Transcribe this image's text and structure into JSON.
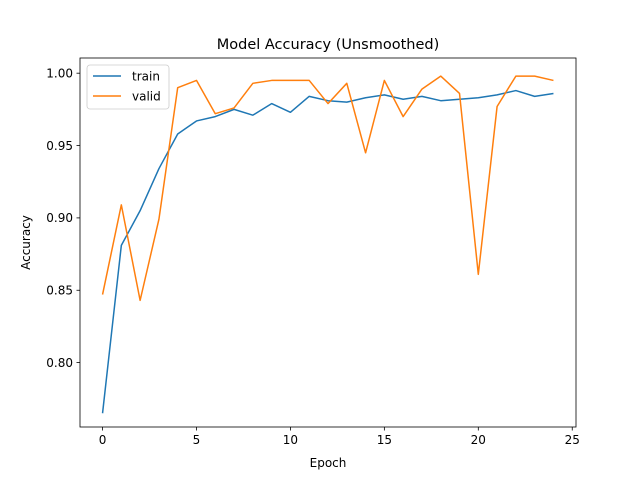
{
  "chart_data": {
    "type": "line",
    "title": "Model Accuracy (Unsmoothed)",
    "xlabel": "Epoch",
    "ylabel": "Accuracy",
    "xlim": [
      -1.2,
      25.2
    ],
    "ylim": [
      0.7555,
      1.0105
    ],
    "xticks": [
      0,
      5,
      10,
      15,
      20,
      25
    ],
    "xtick_labels": [
      "0",
      "5",
      "10",
      "15",
      "20",
      "25"
    ],
    "yticks": [
      0.8,
      0.85,
      0.9,
      0.95,
      1.0
    ],
    "ytick_labels": [
      "0.80",
      "0.85",
      "0.90",
      "0.95",
      "1.00"
    ],
    "grid": false,
    "legend_position": "top-left",
    "x": [
      0,
      1,
      2,
      3,
      4,
      5,
      6,
      7,
      8,
      9,
      10,
      11,
      12,
      13,
      14,
      15,
      16,
      17,
      18,
      19,
      20,
      21,
      22,
      23,
      24
    ],
    "series": [
      {
        "name": "train",
        "color": "#1f77b4",
        "values": [
          0.765,
          0.881,
          0.905,
          0.934,
          0.958,
          0.967,
          0.97,
          0.975,
          0.971,
          0.979,
          0.973,
          0.984,
          0.981,
          0.98,
          0.983,
          0.985,
          0.982,
          0.984,
          0.981,
          0.982,
          0.983,
          0.985,
          0.988,
          0.984,
          0.986
        ]
      },
      {
        "name": "valid",
        "color": "#ff7f0e",
        "values": [
          0.847,
          0.909,
          0.843,
          0.899,
          0.99,
          0.995,
          0.972,
          0.976,
          0.993,
          0.995,
          0.995,
          0.995,
          0.979,
          0.993,
          0.945,
          0.995,
          0.97,
          0.989,
          0.998,
          0.986,
          0.861,
          0.977,
          0.998,
          0.998,
          0.995
        ]
      }
    ]
  }
}
